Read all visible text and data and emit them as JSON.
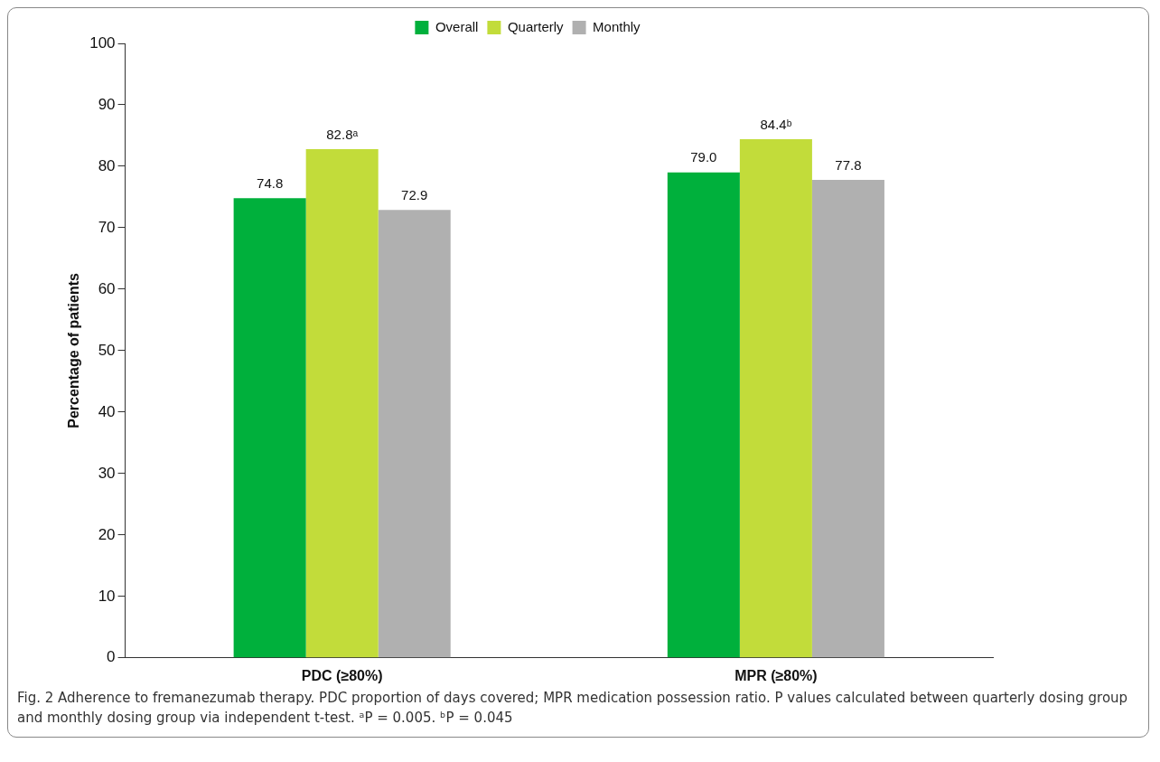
{
  "chart_data": {
    "type": "bar",
    "ylabel": "Percentage of patients",
    "categories": [
      "PDC (≥80%)",
      "MPR (≥80%)"
    ],
    "series": [
      {
        "name": "Overall",
        "color": "#00b03c",
        "values": [
          74.8,
          79.0
        ],
        "value_labels": [
          "74.8",
          "79.0"
        ]
      },
      {
        "name": "Quarterly",
        "color": "#c2dc3a",
        "values": [
          82.8,
          84.4
        ],
        "value_labels": [
          "82.8ᵃ",
          "84.4ᵇ"
        ]
      },
      {
        "name": "Monthly",
        "color": "#b0b0b0",
        "values": [
          72.9,
          77.8
        ],
        "value_labels": [
          "72.9",
          "77.8"
        ]
      }
    ],
    "ylim": [
      0,
      100
    ],
    "yticks": [
      0,
      10,
      20,
      30,
      40,
      50,
      60,
      70,
      80,
      90,
      100
    ],
    "grid": false,
    "legend": "top",
    "annotations": [
      "Fig. 2 Adherence to fremanezumab therapy. PDC proportion of days covered; MPR medication possession ratio. P values calculated between quarterly dosing group and monthly dosing group via independent t-test. ᵃP = 0.005. ᵇP = 0.045"
    ]
  }
}
